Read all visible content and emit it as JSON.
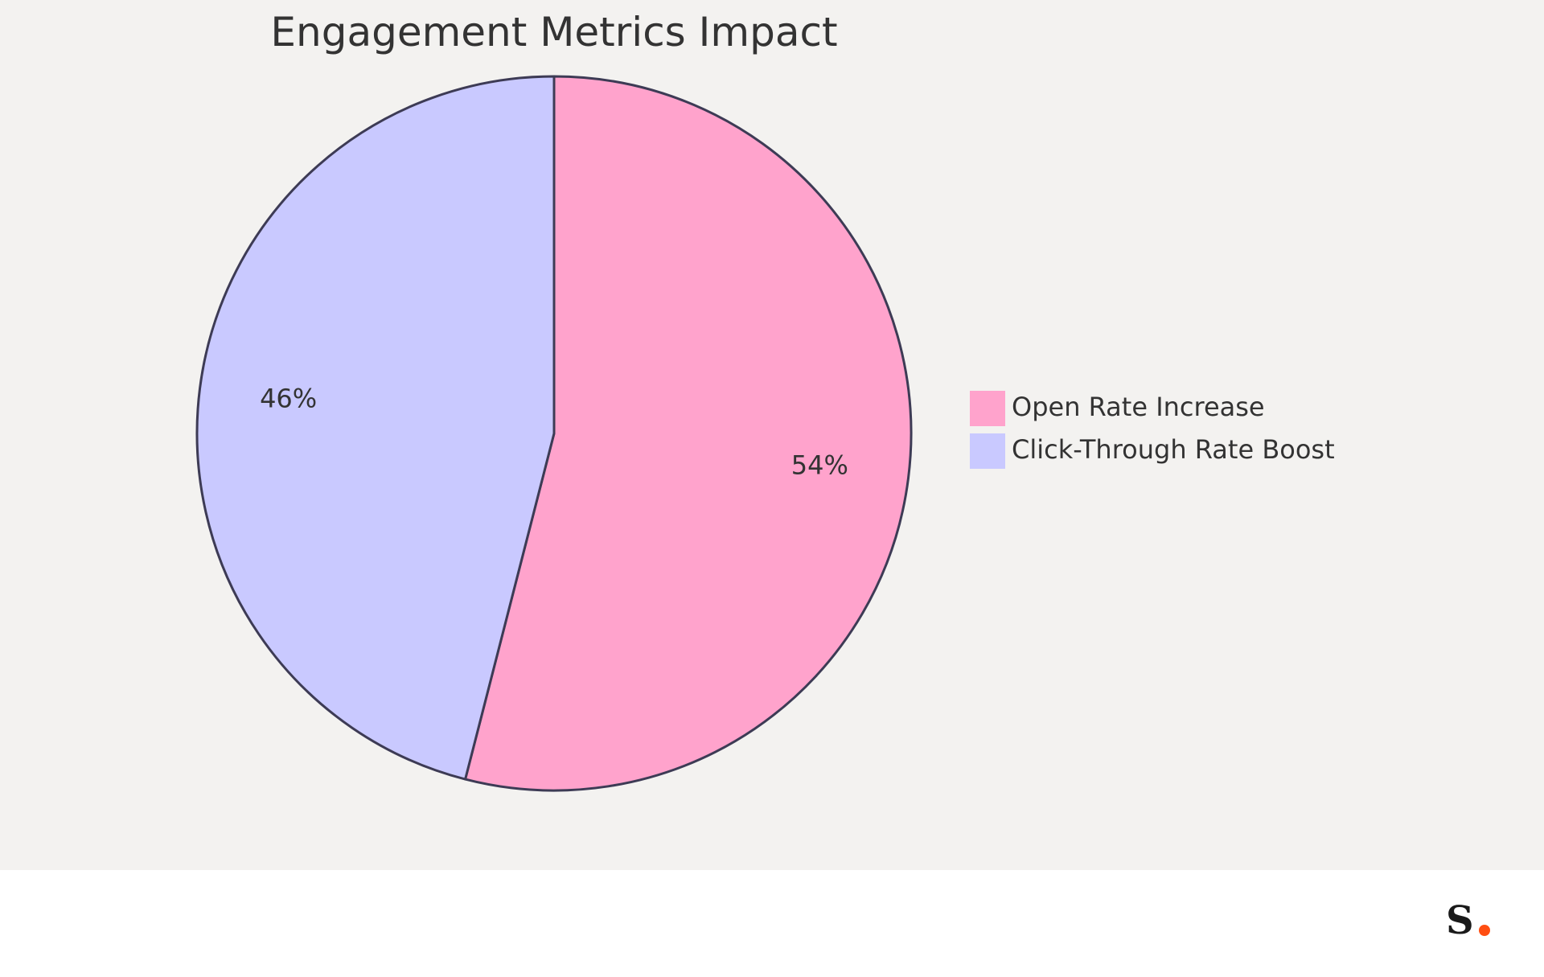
{
  "chart_data": {
    "type": "pie",
    "title": "Engagement Metrics Impact",
    "slices": [
      {
        "label": "Open Rate Increase",
        "value": 54,
        "display": "54%",
        "color": "#ffa3cc"
      },
      {
        "label": "Click-Through Rate Boost",
        "value": 46,
        "display": "46%",
        "color": "#c9c9ff"
      }
    ],
    "legend": {
      "position": "right",
      "entries": [
        "Open Rate Increase",
        "Click-Through Rate Boost"
      ]
    },
    "stroke_color": "#3d3b55"
  },
  "style": {
    "chart_background": "#f3f2f0",
    "footer_background": "#ffffff",
    "text_color": "#333333",
    "logo_letter_color": "#1a1a1a",
    "logo_dot_color": "#ff4e12"
  },
  "brand": {
    "logo_text": "S."
  }
}
